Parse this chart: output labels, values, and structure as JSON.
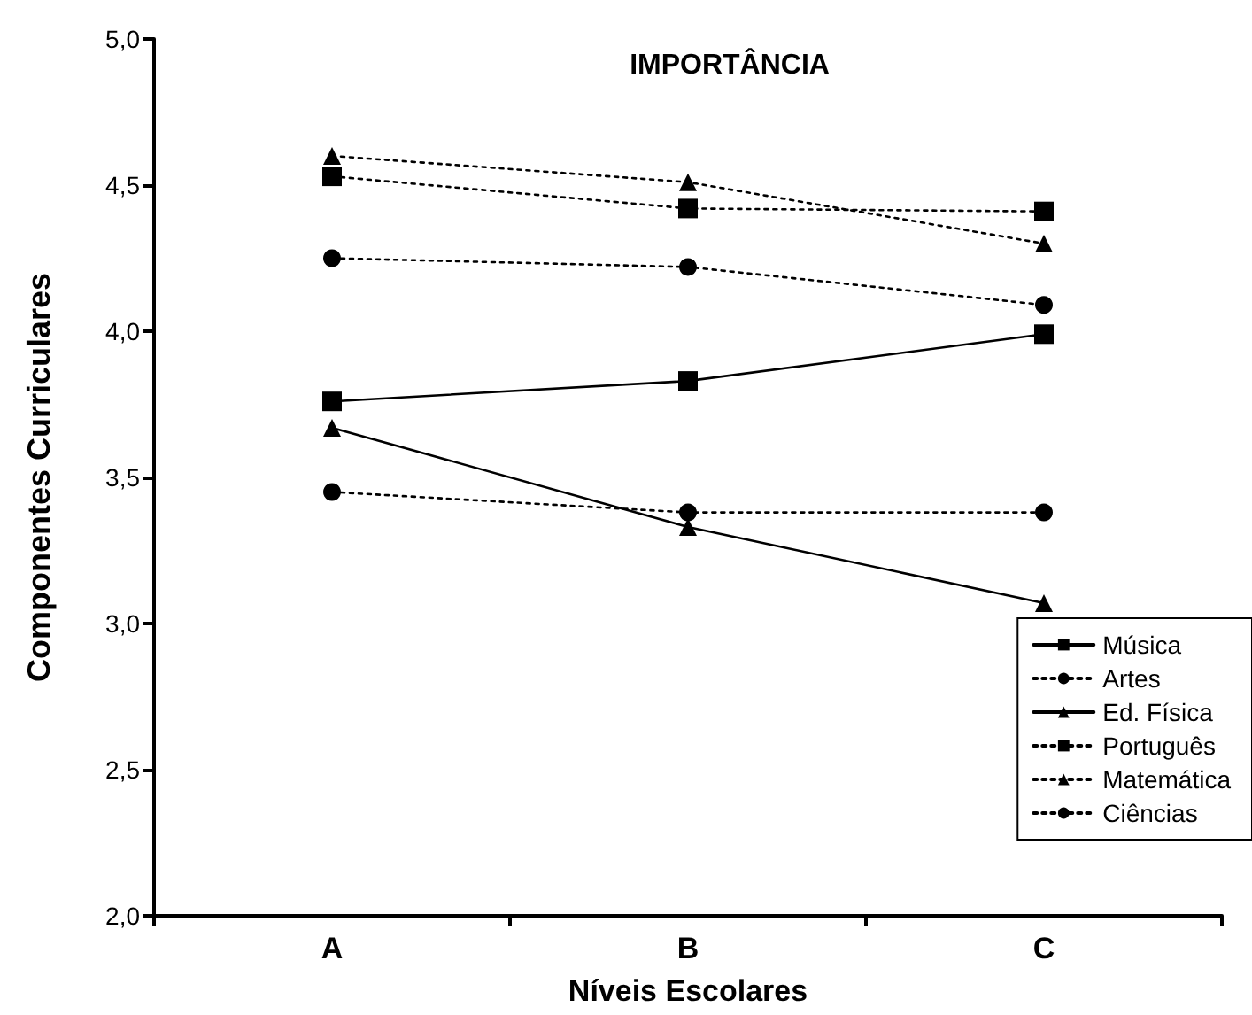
{
  "chart_data": {
    "type": "line",
    "title": "IMPORTÂNCIA",
    "xlabel": "Níveis Escolares",
    "ylabel": "Componentes Curriculares",
    "categories": [
      "A",
      "B",
      "C"
    ],
    "series": [
      {
        "name": "Música",
        "color": "#000000",
        "marker": "square",
        "line_style": "solid",
        "values": [
          3.76,
          3.83,
          3.99
        ]
      },
      {
        "name": "Artes",
        "color": "#000000",
        "marker": "circle",
        "line_style": "dotted",
        "values": [
          3.45,
          3.38,
          3.38
        ]
      },
      {
        "name": "Ed. Física",
        "color": "#000000",
        "marker": "triangle",
        "line_style": "solid",
        "values": [
          3.67,
          3.33,
          3.07
        ]
      },
      {
        "name": "Português",
        "color": "#000000",
        "marker": "square",
        "line_style": "dotted",
        "values": [
          4.53,
          4.42,
          4.41
        ]
      },
      {
        "name": "Matemática",
        "color": "#000000",
        "marker": "triangle",
        "line_style": "dotted",
        "values": [
          4.6,
          4.51,
          4.3
        ]
      },
      {
        "name": "Ciências",
        "color": "#000000",
        "marker": "circle",
        "line_style": "dotted",
        "values": [
          4.25,
          4.22,
          4.09
        ]
      }
    ],
    "ylim": [
      2,
      5
    ],
    "yticks": [
      {
        "value": 2,
        "label": "2,0"
      },
      {
        "value": 2.5,
        "label": "2,5"
      },
      {
        "value": 3,
        "label": "3,0"
      },
      {
        "value": 3.5,
        "label": "3,5"
      },
      {
        "value": 4,
        "label": "4,0"
      },
      {
        "value": 4.5,
        "label": "4,5"
      },
      {
        "value": 5,
        "label": "5,0"
      }
    ],
    "grid": false,
    "legend": "bottom right"
  }
}
